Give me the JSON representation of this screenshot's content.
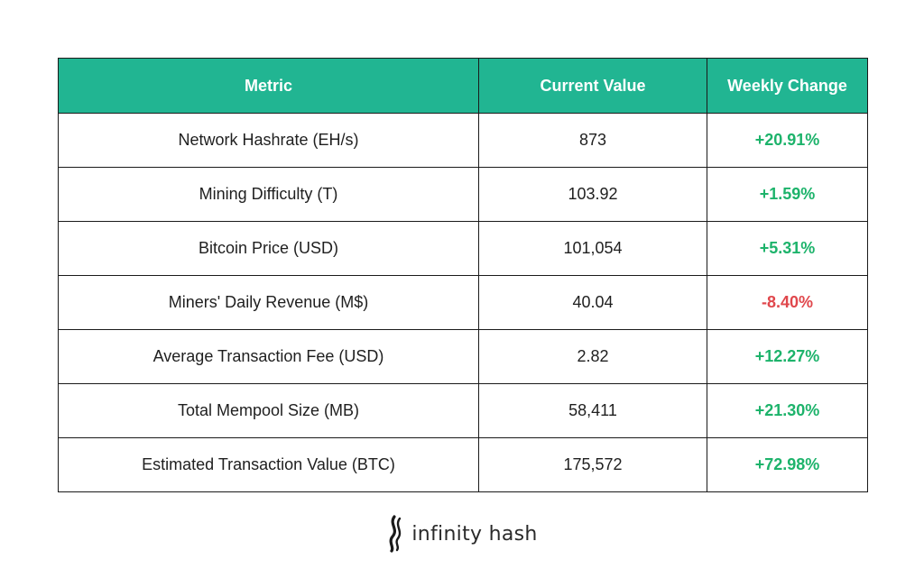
{
  "table": {
    "headers": {
      "metric": "Metric",
      "current_value": "Current Value",
      "weekly_change": "Weekly Change"
    },
    "rows": [
      {
        "metric": "Network Hashrate (EH/s)",
        "value": "873",
        "change": "+20.91%",
        "direction": "up"
      },
      {
        "metric": "Mining Difficulty (T)",
        "value": "103.92",
        "change": "+1.59%",
        "direction": "up"
      },
      {
        "metric": "Bitcoin Price (USD)",
        "value": "101,054",
        "change": "+5.31%",
        "direction": "up"
      },
      {
        "metric": "Miners' Daily Revenue (M$)",
        "value": "40.04",
        "change": "-8.40%",
        "direction": "down"
      },
      {
        "metric": "Average Transaction Fee (USD)",
        "value": "2.82",
        "change": "+12.27%",
        "direction": "up"
      },
      {
        "metric": "Total Mempool Size (MB)",
        "value": "58,411",
        "change": "+21.30%",
        "direction": "up"
      },
      {
        "metric": "Estimated Transaction Value (BTC)",
        "value": "175,572",
        "change": "+72.98%",
        "direction": "up"
      }
    ]
  },
  "colors": {
    "header_bg": "#21b592",
    "positive": "#1db36b",
    "negative": "#e0474c"
  },
  "brand": {
    "name": "infinity hash",
    "logo_icon": "infinity-hash-logo-icon"
  }
}
